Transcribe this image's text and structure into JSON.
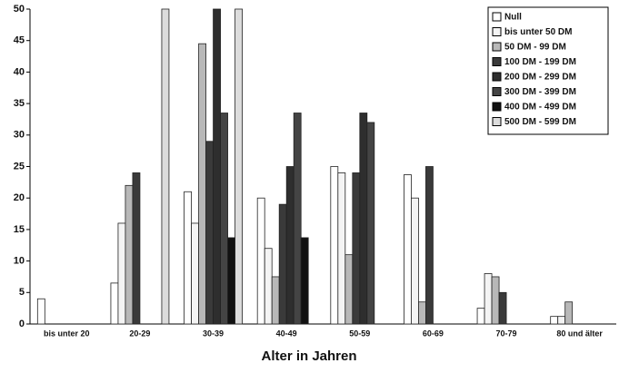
{
  "chart_data": {
    "type": "bar",
    "x_label": "Alter in Jahren",
    "categories": [
      "bis unter 20",
      "20-29",
      "30-39",
      "40-49",
      "50-59",
      "60-69",
      "70-79",
      "80 und älter"
    ],
    "series": [
      {
        "name": "Null",
        "color": "#ffffff",
        "values": [
          4,
          6.5,
          21,
          20,
          25,
          23.7,
          2.5,
          1.2
        ]
      },
      {
        "name": "bis unter 50 DM",
        "color": "#f4f4f4",
        "values": [
          0,
          16,
          16,
          12,
          24,
          20,
          8,
          1.2
        ]
      },
      {
        "name": "50 DM - 99 DM",
        "color": "#b8b8b8",
        "values": [
          0,
          22,
          44.5,
          7.5,
          11,
          3.5,
          7.5,
          3.5
        ]
      },
      {
        "name": "100 DM - 199 DM",
        "color": "#3a3a3a",
        "values": [
          0,
          24,
          29,
          19,
          24,
          25,
          5,
          0
        ]
      },
      {
        "name": "200 DM - 299 DM",
        "color": "#2e2e2e",
        "values": [
          0,
          0,
          50,
          25,
          33.5,
          0,
          0,
          0
        ]
      },
      {
        "name": "300 DM - 399 DM",
        "color": "#444444",
        "values": [
          0,
          0,
          33.5,
          33.5,
          32,
          0,
          0,
          0
        ]
      },
      {
        "name": "400 DM - 499 DM",
        "color": "#111111",
        "values": [
          0,
          0,
          13.7,
          13.7,
          0,
          0,
          0,
          0
        ]
      },
      {
        "name": "500 DM - 599 DM",
        "color": "#dcdcdc",
        "values": [
          0,
          50,
          50,
          0,
          0,
          0,
          0,
          0
        ]
      }
    ],
    "ylim": [
      0,
      50
    ],
    "yticks": [
      0,
      5,
      10,
      15,
      20,
      25,
      30,
      35,
      40,
      45,
      50
    ],
    "legend": "top-right"
  }
}
